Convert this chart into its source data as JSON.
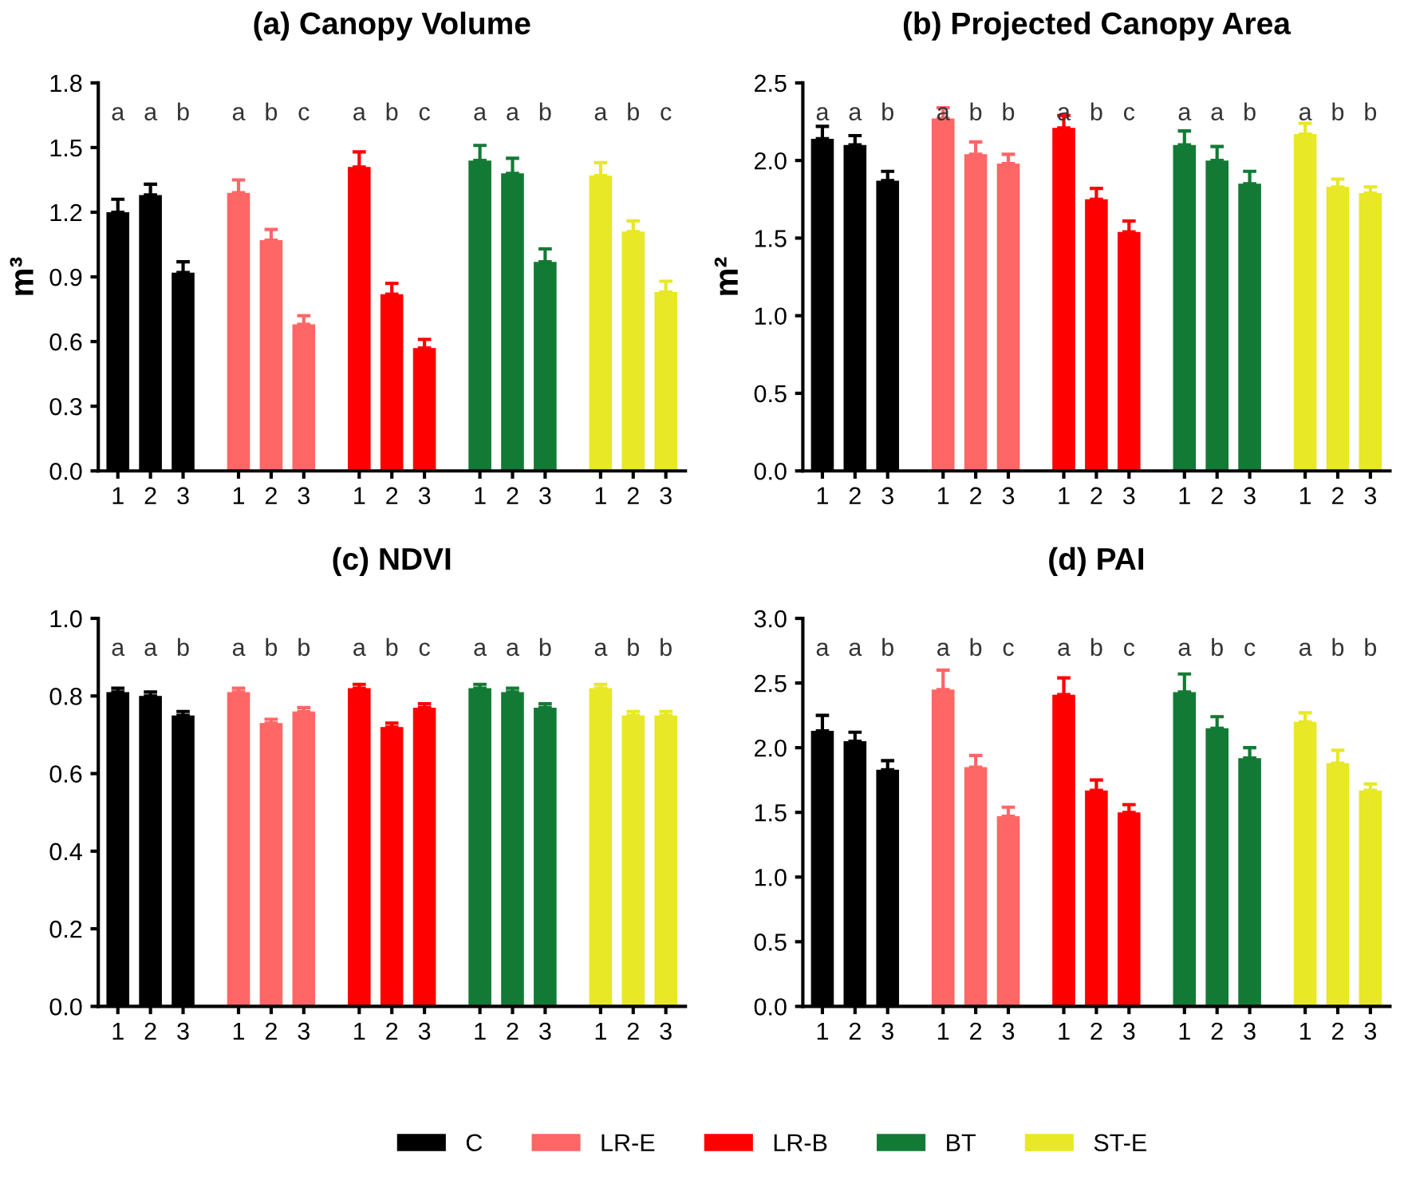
{
  "chart_data": [
    {
      "type": "bar",
      "title": "(a) Canopy Volume",
      "ylabel": "m³",
      "categories": [
        "1",
        "2",
        "3",
        "1",
        "2",
        "3",
        "1",
        "2",
        "3",
        "1",
        "2",
        "3",
        "1",
        "2",
        "3"
      ],
      "ylim": [
        0,
        1.8
      ],
      "yticks": [
        {
          "value": 0,
          "label": "0.0"
        },
        0.3,
        0.6,
        0.9,
        1.2,
        1.5,
        1.8
      ],
      "grid": false,
      "legend": "bottom",
      "annotations": [
        "a",
        "a",
        "b",
        "a",
        "b",
        "c",
        "a",
        "b",
        "c",
        "a",
        "a",
        "b",
        "a",
        "b",
        "c"
      ],
      "series": [
        {
          "name": "C",
          "color": "#000000",
          "values": [
            1.2,
            1.28,
            0.92,
            null,
            null,
            null,
            null,
            null,
            null,
            null,
            null,
            null,
            null,
            null,
            null
          ],
          "errors": [
            [
              1.2,
              1.26
            ],
            [
              1.28,
              1.33
            ],
            [
              0.92,
              0.97
            ],
            null,
            null,
            null,
            null,
            null,
            null,
            null,
            null,
            null,
            null,
            null,
            null
          ]
        },
        {
          "name": "LR-E",
          "color": "#ff6666",
          "values": [
            null,
            null,
            null,
            1.29,
            1.07,
            0.68,
            null,
            null,
            null,
            null,
            null,
            null,
            null,
            null,
            null
          ],
          "errors": [
            null,
            null,
            null,
            [
              1.29,
              1.35
            ],
            [
              1.07,
              1.12
            ],
            [
              0.68,
              0.72
            ],
            null,
            null,
            null,
            null,
            null,
            null,
            null,
            null,
            null
          ]
        },
        {
          "name": "LR-B",
          "color": "#ff0000",
          "values": [
            null,
            null,
            null,
            null,
            null,
            null,
            1.41,
            0.82,
            0.57,
            null,
            null,
            null,
            null,
            null,
            null
          ],
          "errors": [
            null,
            null,
            null,
            null,
            null,
            null,
            [
              1.41,
              1.48
            ],
            [
              0.82,
              0.87
            ],
            [
              0.57,
              0.61
            ],
            null,
            null,
            null,
            null,
            null,
            null
          ]
        },
        {
          "name": "BT",
          "color": "#137a35",
          "values": [
            null,
            null,
            null,
            null,
            null,
            null,
            null,
            null,
            null,
            1.44,
            1.38,
            0.97,
            null,
            null,
            null
          ],
          "errors": [
            null,
            null,
            null,
            null,
            null,
            null,
            null,
            null,
            null,
            [
              1.44,
              1.51
            ],
            [
              1.38,
              1.45
            ],
            [
              0.97,
              1.03
            ],
            null,
            null,
            null
          ]
        },
        {
          "name": "ST-E",
          "color": "#e8e826",
          "values": [
            null,
            null,
            null,
            null,
            null,
            null,
            null,
            null,
            null,
            null,
            null,
            null,
            1.37,
            1.11,
            0.83
          ],
          "errors": [
            null,
            null,
            null,
            null,
            null,
            null,
            null,
            null,
            null,
            null,
            null,
            null,
            [
              1.37,
              1.43
            ],
            [
              1.11,
              1.16
            ],
            [
              0.83,
              0.88
            ]
          ]
        }
      ]
    },
    {
      "type": "bar",
      "title": "(b) Projected Canopy Area",
      "ylabel": "m²",
      "categories": [
        "1",
        "2",
        "3",
        "1",
        "2",
        "3",
        "1",
        "2",
        "3",
        "1",
        "2",
        "3",
        "1",
        "2",
        "3"
      ],
      "ylim": [
        0,
        2.5
      ],
      "yticks": [
        {
          "value": 0,
          "label": "0.0"
        },
        0.5,
        {
          "value": 1,
          "label": "1.0"
        },
        1.5,
        {
          "value": 2,
          "label": "2.0"
        },
        2.5
      ],
      "grid": false,
      "annotations": [
        "a",
        "a",
        "b",
        "a",
        "b",
        "b",
        "a",
        "b",
        "c",
        "a",
        "a",
        "b",
        "a",
        "b",
        "b"
      ],
      "series": [
        {
          "color": "#000000",
          "values": [
            2.14,
            2.1,
            1.87,
            null,
            null,
            null,
            null,
            null,
            null,
            null,
            null,
            null,
            null,
            null,
            null
          ],
          "errors": [
            [
              2.14,
              2.22
            ],
            [
              2.1,
              2.16
            ],
            [
              1.87,
              1.93
            ],
            null,
            null,
            null,
            null,
            null,
            null,
            null,
            null,
            null,
            null,
            null,
            null
          ]
        },
        {
          "color": "#ff6666",
          "values": [
            null,
            null,
            null,
            2.27,
            2.04,
            1.98,
            null,
            null,
            null,
            null,
            null,
            null,
            null,
            null,
            null
          ],
          "errors": [
            null,
            null,
            null,
            [
              2.27,
              2.34
            ],
            [
              2.04,
              2.12
            ],
            [
              1.98,
              2.04
            ],
            null,
            null,
            null,
            null,
            null,
            null,
            null,
            null,
            null
          ]
        },
        {
          "color": "#ff0000",
          "values": [
            null,
            null,
            null,
            null,
            null,
            null,
            2.21,
            1.75,
            1.54,
            null,
            null,
            null,
            null,
            null,
            null
          ],
          "errors": [
            null,
            null,
            null,
            null,
            null,
            null,
            [
              2.21,
              2.29
            ],
            [
              1.75,
              1.82
            ],
            [
              1.54,
              1.61
            ],
            null,
            null,
            null,
            null,
            null,
            null
          ]
        },
        {
          "color": "#137a35",
          "values": [
            null,
            null,
            null,
            null,
            null,
            null,
            null,
            null,
            null,
            2.1,
            2.0,
            1.85,
            null,
            null,
            null
          ],
          "errors": [
            null,
            null,
            null,
            null,
            null,
            null,
            null,
            null,
            null,
            [
              2.1,
              2.19
            ],
            [
              2.0,
              2.09
            ],
            [
              1.85,
              1.93
            ],
            null,
            null,
            null
          ]
        },
        {
          "color": "#e8e826",
          "values": [
            null,
            null,
            null,
            null,
            null,
            null,
            null,
            null,
            null,
            null,
            null,
            null,
            2.17,
            1.83,
            1.79
          ],
          "errors": [
            null,
            null,
            null,
            null,
            null,
            null,
            null,
            null,
            null,
            null,
            null,
            null,
            [
              2.17,
              2.24
            ],
            [
              1.83,
              1.88
            ],
            [
              1.79,
              1.83
            ]
          ]
        }
      ]
    },
    {
      "type": "bar",
      "title": "(c) NDVI",
      "categories": [
        "1",
        "2",
        "3",
        "1",
        "2",
        "3",
        "1",
        "2",
        "3",
        "1",
        "2",
        "3",
        "1",
        "2",
        "3"
      ],
      "ylim": [
        0,
        1.0
      ],
      "yticks": [
        {
          "value": 0,
          "label": "0.0"
        },
        0.2,
        0.4,
        0.6,
        0.8,
        {
          "value": 1,
          "label": "1.0"
        }
      ],
      "grid": false,
      "annotations": [
        "a",
        "a",
        "b",
        "a",
        "b",
        "b",
        "a",
        "b",
        "c",
        "a",
        "a",
        "b",
        "a",
        "b",
        "b"
      ],
      "series": [
        {
          "color": "#000000",
          "values": [
            0.81,
            0.8,
            0.75,
            null,
            null,
            null,
            null,
            null,
            null,
            null,
            null,
            null,
            null,
            null,
            null
          ],
          "errors": [
            [
              0.81,
              0.82
            ],
            [
              0.8,
              0.81
            ],
            [
              0.75,
              0.76
            ],
            null,
            null,
            null,
            null,
            null,
            null,
            null,
            null,
            null,
            null,
            null,
            null
          ]
        },
        {
          "color": "#ff6666",
          "values": [
            null,
            null,
            null,
            0.81,
            0.73,
            0.76,
            null,
            null,
            null,
            null,
            null,
            null,
            null,
            null,
            null
          ],
          "errors": [
            null,
            null,
            null,
            [
              0.81,
              0.82
            ],
            [
              0.73,
              0.74
            ],
            [
              0.76,
              0.77
            ],
            null,
            null,
            null,
            null,
            null,
            null,
            null,
            null,
            null
          ]
        },
        {
          "color": "#ff0000",
          "values": [
            null,
            null,
            null,
            null,
            null,
            null,
            0.82,
            0.72,
            0.77,
            null,
            null,
            null,
            null,
            null,
            null
          ],
          "errors": [
            null,
            null,
            null,
            null,
            null,
            null,
            [
              0.82,
              0.83
            ],
            [
              0.72,
              0.73
            ],
            [
              0.77,
              0.78
            ],
            null,
            null,
            null,
            null,
            null,
            null
          ]
        },
        {
          "color": "#137a35",
          "values": [
            null,
            null,
            null,
            null,
            null,
            null,
            null,
            null,
            null,
            0.82,
            0.81,
            0.77,
            null,
            null,
            null
          ],
          "errors": [
            null,
            null,
            null,
            null,
            null,
            null,
            null,
            null,
            null,
            [
              0.82,
              0.83
            ],
            [
              0.81,
              0.82
            ],
            [
              0.77,
              0.78
            ],
            null,
            null,
            null
          ]
        },
        {
          "color": "#e8e826",
          "values": [
            null,
            null,
            null,
            null,
            null,
            null,
            null,
            null,
            null,
            null,
            null,
            null,
            0.82,
            0.75,
            0.75
          ],
          "errors": [
            null,
            null,
            null,
            null,
            null,
            null,
            null,
            null,
            null,
            null,
            null,
            null,
            [
              0.82,
              0.83
            ],
            [
              0.75,
              0.76
            ],
            [
              0.75,
              0.76
            ]
          ]
        }
      ]
    },
    {
      "type": "bar",
      "title": "(d) PAI",
      "categories": [
        "1",
        "2",
        "3",
        "1",
        "2",
        "3",
        "1",
        "2",
        "3",
        "1",
        "2",
        "3",
        "1",
        "2",
        "3"
      ],
      "ylim": [
        0,
        3.0
      ],
      "yticks": [
        {
          "value": 0,
          "label": "0.0"
        },
        0.5,
        {
          "value": 1,
          "label": "1.0"
        },
        1.5,
        {
          "value": 2,
          "label": "2.0"
        },
        2.5,
        {
          "value": 3,
          "label": "3.0"
        }
      ],
      "grid": false,
      "annotations": [
        "a",
        "a",
        "b",
        "a",
        "b",
        "c",
        "a",
        "b",
        "c",
        "a",
        "b",
        "c",
        "a",
        "b",
        "b"
      ],
      "series": [
        {
          "color": "#000000",
          "values": [
            2.13,
            2.05,
            1.83,
            null,
            null,
            null,
            null,
            null,
            null,
            null,
            null,
            null,
            null,
            null,
            null
          ],
          "errors": [
            [
              2.13,
              2.25
            ],
            [
              2.05,
              2.12
            ],
            [
              1.83,
              1.9
            ],
            null,
            null,
            null,
            null,
            null,
            null,
            null,
            null,
            null,
            null,
            null,
            null
          ]
        },
        {
          "color": "#ff6666",
          "values": [
            null,
            null,
            null,
            2.45,
            1.85,
            1.47,
            null,
            null,
            null,
            null,
            null,
            null,
            null,
            null,
            null
          ],
          "errors": [
            null,
            null,
            null,
            [
              2.45,
              2.6
            ],
            [
              1.85,
              1.94
            ],
            [
              1.47,
              1.54
            ],
            null,
            null,
            null,
            null,
            null,
            null,
            null,
            null,
            null
          ]
        },
        {
          "color": "#ff0000",
          "values": [
            null,
            null,
            null,
            null,
            null,
            null,
            2.41,
            1.67,
            1.5,
            null,
            null,
            null,
            null,
            null,
            null
          ],
          "errors": [
            null,
            null,
            null,
            null,
            null,
            null,
            [
              2.41,
              2.54
            ],
            [
              1.67,
              1.75
            ],
            [
              1.5,
              1.56
            ],
            null,
            null,
            null,
            null,
            null,
            null
          ]
        },
        {
          "color": "#137a35",
          "values": [
            null,
            null,
            null,
            null,
            null,
            null,
            null,
            null,
            null,
            2.43,
            2.15,
            1.92,
            null,
            null,
            null
          ],
          "errors": [
            null,
            null,
            null,
            null,
            null,
            null,
            null,
            null,
            null,
            [
              2.43,
              2.57
            ],
            [
              2.15,
              2.24
            ],
            [
              1.92,
              2.0
            ],
            null,
            null,
            null
          ]
        },
        {
          "color": "#e8e826",
          "values": [
            null,
            null,
            null,
            null,
            null,
            null,
            null,
            null,
            null,
            null,
            null,
            null,
            2.2,
            1.88,
            1.67
          ],
          "errors": [
            null,
            null,
            null,
            null,
            null,
            null,
            null,
            null,
            null,
            null,
            null,
            null,
            [
              2.2,
              2.27
            ],
            [
              1.88,
              1.98
            ],
            [
              1.67,
              1.72
            ]
          ]
        }
      ]
    }
  ]
}
